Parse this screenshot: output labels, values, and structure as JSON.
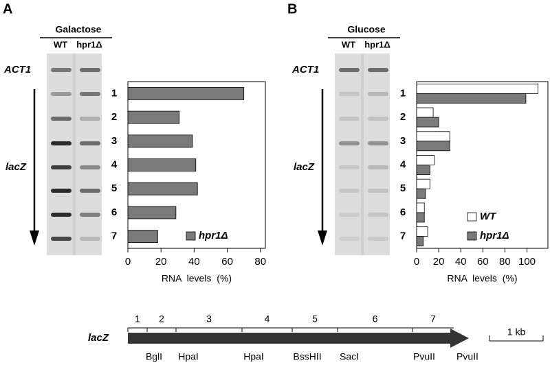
{
  "chart_data": [
    {
      "type": "bar",
      "orientation": "horizontal",
      "categories": [
        "1",
        "2",
        "3",
        "4",
        "5",
        "6",
        "7"
      ],
      "series": [
        {
          "name": "hpr1Δ",
          "color": "#7a7a7a",
          "values": [
            70,
            31,
            39,
            41,
            42,
            29,
            18
          ]
        }
      ],
      "xlim": [
        0,
        83
      ],
      "xticks": [
        0,
        20,
        40,
        60,
        80
      ],
      "xlabel": "RNA levels (%)",
      "legend": "lower right"
    },
    {
      "type": "bar",
      "orientation": "horizontal",
      "categories": [
        "1",
        "2",
        "3",
        "4",
        "5",
        "6",
        "7"
      ],
      "series": [
        {
          "name": "WT",
          "color": "#ffffff",
          "values": [
            110,
            15,
            30,
            16,
            12,
            7,
            10
          ]
        },
        {
          "name": "hpr1Δ",
          "color": "#7a7a7a",
          "values": [
            99,
            20,
            30,
            12,
            8,
            7,
            6
          ]
        }
      ],
      "xlim": [
        0,
        119
      ],
      "xticks": [
        0,
        20,
        40,
        60,
        80,
        100
      ],
      "xlabel": "RNA levels (%)",
      "legend": "lower right"
    }
  ],
  "panels": [
    "A",
    "B"
  ],
  "gels": [
    {
      "title": "Galactose",
      "lanes": [
        "WT",
        "hpr1Δ"
      ],
      "rows": [
        "ACT1",
        "lacZ"
      ]
    },
    {
      "title": "Glucose",
      "lanes": [
        "WT",
        "hpr1Δ"
      ],
      "rows": [
        "ACT1",
        "lacZ"
      ]
    }
  ],
  "diagram": {
    "gene": "lacZ",
    "segments": [
      "1",
      "2",
      "3",
      "4",
      "5",
      "6",
      "7"
    ],
    "sites": [
      "BglI",
      "HpaI",
      "HpaI",
      "BssHII",
      "SacI",
      "PvuII",
      "PvuII"
    ],
    "scale": "1 kb"
  }
}
